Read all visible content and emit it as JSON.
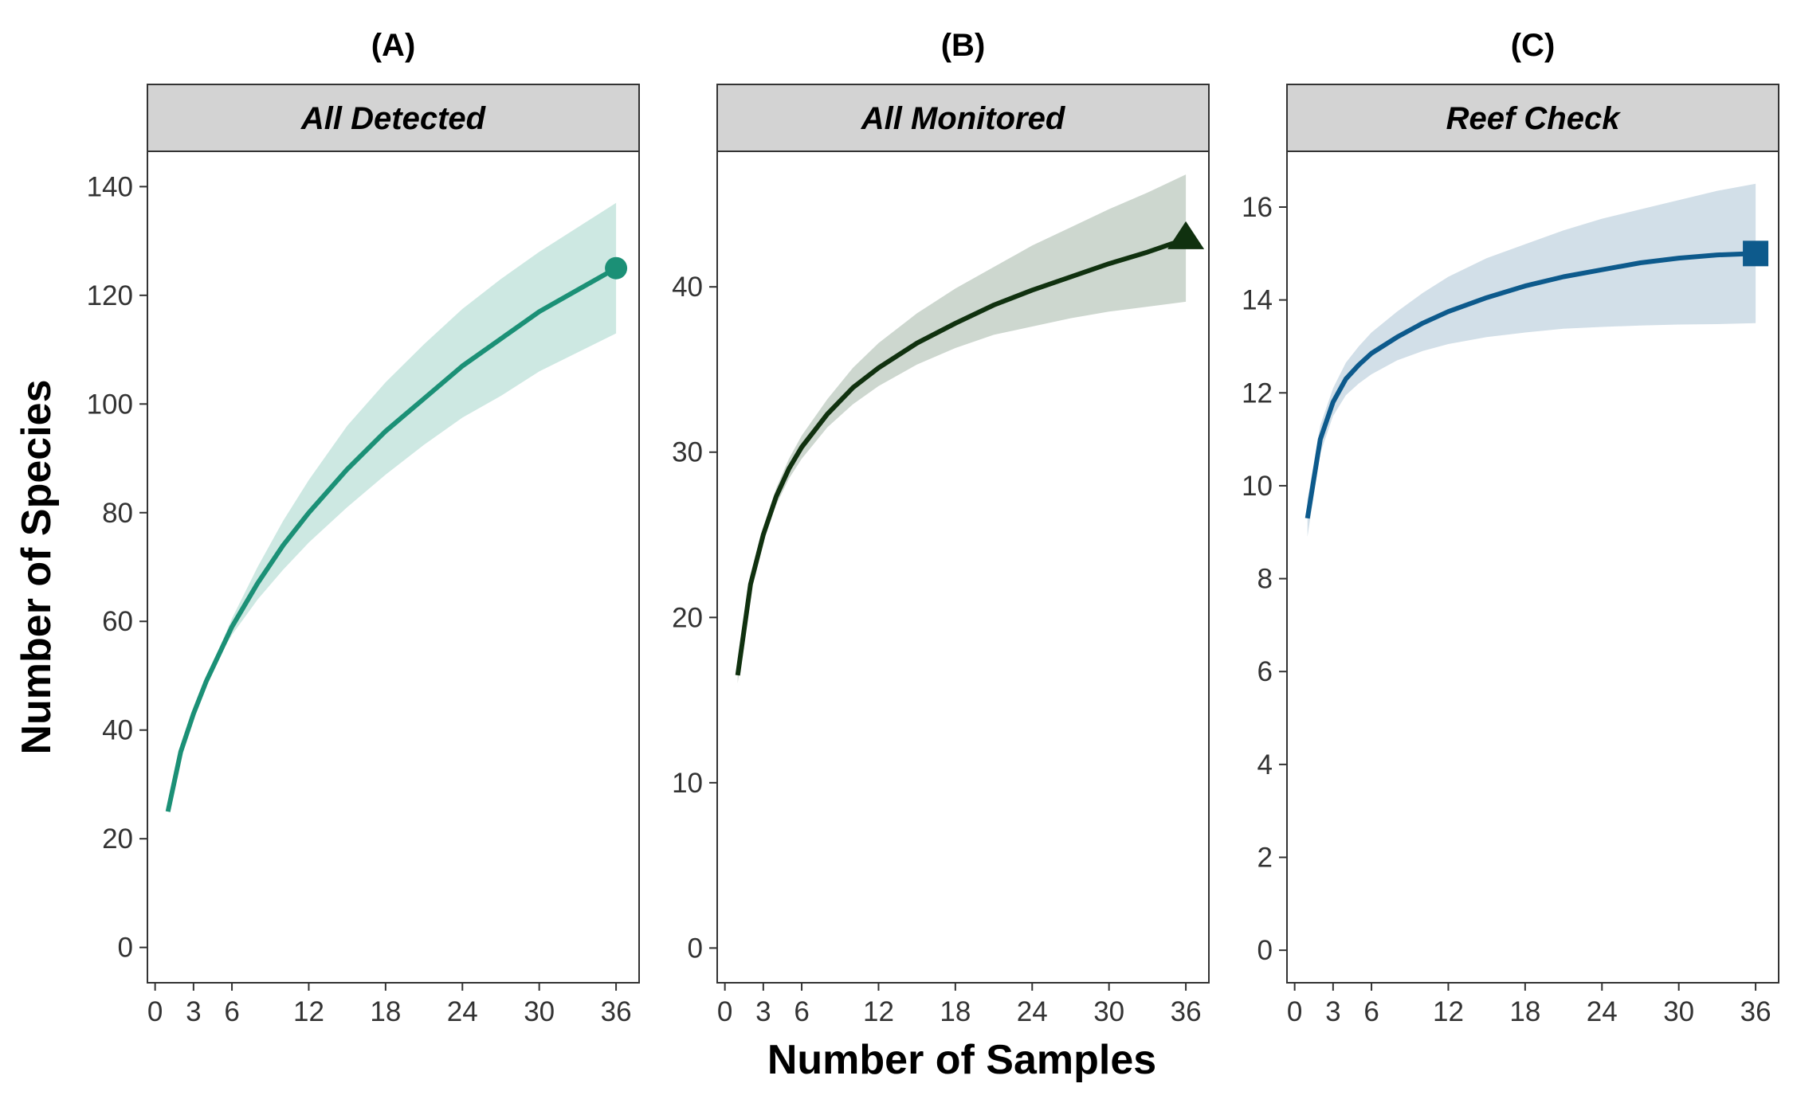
{
  "chart_data": {
    "type": "line",
    "xlabel": "Number of Samples",
    "ylabel": "Number of Species",
    "panels": [
      {
        "panel_label": "(A)",
        "strip": "All Detected",
        "color": "#1b9076",
        "band_color": "#cde8e2",
        "marker": "circle",
        "xlim": [
          -0.6,
          37.8
        ],
        "ylim": [
          -6.5,
          146.5
        ],
        "xticks": [
          0,
          3,
          6,
          12,
          18,
          24,
          30,
          36
        ],
        "yticks": [
          0,
          20,
          40,
          60,
          80,
          100,
          120,
          140
        ],
        "x": [
          1,
          2,
          3,
          4,
          5,
          6,
          8,
          10,
          12,
          15,
          18,
          21,
          24,
          27,
          30,
          33,
          36
        ],
        "y": [
          25,
          36,
          43,
          49,
          54,
          59,
          67,
          74,
          80,
          88,
          95,
          101,
          107,
          112,
          117,
          121,
          125
        ],
        "lower": [
          25,
          36,
          43,
          49,
          53.5,
          57.5,
          64,
          69.5,
          74.5,
          81,
          87,
          92.5,
          97.5,
          101.5,
          106,
          109.5,
          113
        ],
        "upper": [
          25,
          36,
          43,
          49.5,
          55,
          60.5,
          70,
          78.5,
          86,
          96,
          104,
          111,
          117.5,
          123,
          128,
          132.5,
          137
        ],
        "end_point": {
          "x": 36,
          "y": 125
        }
      },
      {
        "panel_label": "(B)",
        "strip": "All Monitored",
        "color": "#10310f",
        "band_color": "#cdd7cf",
        "marker": "triangle",
        "xlim": [
          -0.6,
          37.8
        ],
        "ylim": [
          -2.1,
          48.2
        ],
        "xticks": [
          0,
          3,
          6,
          12,
          18,
          24,
          30,
          36
        ],
        "yticks": [
          0,
          10,
          20,
          30,
          40
        ],
        "x": [
          1,
          2,
          3,
          4,
          5,
          6,
          8,
          10,
          12,
          15,
          18,
          21,
          24,
          27,
          30,
          33,
          36
        ],
        "y": [
          16.5,
          22,
          25,
          27.3,
          29,
          30.3,
          32.3,
          33.9,
          35.1,
          36.6,
          37.8,
          38.9,
          39.8,
          40.6,
          41.4,
          42.1,
          42.9
        ],
        "lower": [
          16,
          21.7,
          24.6,
          26.8,
          28.4,
          29.6,
          31.5,
          32.9,
          34,
          35.3,
          36.3,
          37.1,
          37.6,
          38.1,
          38.5,
          38.8,
          39.1
        ],
        "upper": [
          17,
          22.3,
          25.4,
          27.8,
          29.6,
          31,
          33.2,
          35.1,
          36.6,
          38.4,
          39.9,
          41.2,
          42.5,
          43.6,
          44.7,
          45.7,
          46.8
        ],
        "end_point": {
          "x": 36,
          "y": 43
        }
      },
      {
        "panel_label": "(C)",
        "strip": "Reef Check",
        "color": "#0d5a8c",
        "band_color": "#d2dfe8",
        "marker": "square",
        "xlim": [
          -0.6,
          37.8
        ],
        "ylim": [
          -0.7,
          17.2
        ],
        "xticks": [
          0,
          3,
          6,
          12,
          18,
          24,
          30,
          36
        ],
        "yticks": [
          0,
          2,
          4,
          6,
          8,
          10,
          12,
          14,
          16
        ],
        "x": [
          1,
          2,
          3,
          4,
          5,
          6,
          8,
          10,
          12,
          15,
          18,
          21,
          24,
          27,
          30,
          33,
          36
        ],
        "y": [
          9.3,
          11,
          11.8,
          12.3,
          12.6,
          12.85,
          13.2,
          13.5,
          13.75,
          14.05,
          14.3,
          14.5,
          14.65,
          14.8,
          14.9,
          14.97,
          15
        ],
        "lower": [
          8.9,
          10.7,
          11.5,
          11.95,
          12.2,
          12.4,
          12.7,
          12.9,
          13.05,
          13.2,
          13.3,
          13.38,
          13.42,
          13.45,
          13.47,
          13.48,
          13.5
        ],
        "upper": [
          9.7,
          11.3,
          12.1,
          12.65,
          13,
          13.3,
          13.75,
          14.15,
          14.5,
          14.9,
          15.2,
          15.5,
          15.75,
          15.95,
          16.15,
          16.35,
          16.5
        ],
        "end_point": {
          "x": 36,
          "y": 15
        }
      }
    ]
  }
}
